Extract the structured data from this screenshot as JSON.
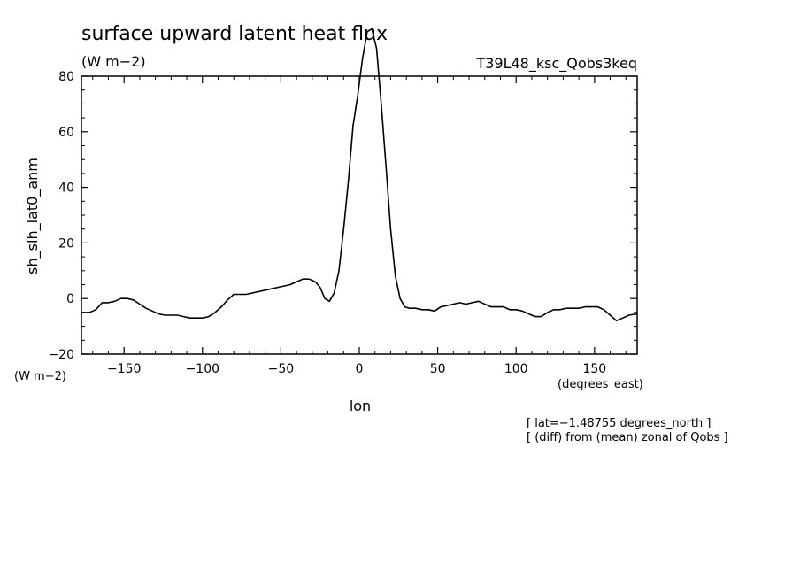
{
  "chart_data": {
    "type": "line",
    "title": "surface upward latent heat flux",
    "title_units": "(W m−2)",
    "run_label": "T39L48_ksc_Qobs3keq",
    "ylabel": "sh_slh_lat0_anm",
    "yunits": "(W m−2)",
    "xlabel": "lon",
    "xunits": "(degrees_east)",
    "notes": [
      "[ lat=−1.48755 degrees_north ]",
      "[ (diff) from (mean) zonal of Qobs ]"
    ],
    "xlim": [
      -177.19,
      177.19
    ],
    "ylim": [
      -20,
      80
    ],
    "xticks": [
      -150,
      -100,
      -50,
      0,
      50,
      100,
      150
    ],
    "xtick_labels": [
      "−150",
      "−100",
      "−50",
      "0",
      "50",
      "100",
      "150"
    ],
    "yticks": [
      -20,
      0,
      20,
      40,
      60,
      80
    ],
    "ytick_labels": [
      "−20",
      "0",
      "20",
      "40",
      "60",
      "80"
    ],
    "grid": false,
    "series": [
      {
        "x": [
          -177.19,
          -172,
          -168,
          -164,
          -160,
          -156,
          -152,
          -148,
          -144,
          -140,
          -136,
          -132,
          -128,
          -124,
          -120,
          -116,
          -112,
          -108,
          -104,
          -100,
          -96,
          -92,
          -88,
          -84,
          -80,
          -76,
          -72,
          -68,
          -64,
          -60,
          -56,
          -52,
          -48,
          -44,
          -40,
          -36,
          -32,
          -28,
          -25,
          -22,
          -19,
          -16,
          -13,
          -10,
          -7,
          -4,
          -1,
          2,
          5,
          8,
          11,
          14,
          17,
          20,
          23,
          26,
          29,
          32,
          36,
          40,
          44,
          48,
          52,
          56,
          60,
          64,
          68,
          72,
          76,
          80,
          84,
          88,
          92,
          96,
          100,
          104,
          108,
          112,
          116,
          120,
          124,
          128,
          132,
          136,
          140,
          144,
          148,
          152,
          156,
          160,
          164,
          168,
          172,
          177.19
        ],
        "y": [
          -5,
          -5,
          -4,
          -1.5,
          -1.5,
          -1,
          0,
          0,
          -0.5,
          -2,
          -3.5,
          -4.5,
          -5.5,
          -6,
          -6,
          -6,
          -6.5,
          -7,
          -7,
          -7,
          -6.5,
          -5,
          -3,
          -0.5,
          1.5,
          1.5,
          1.5,
          2,
          2.5,
          3,
          3.5,
          4,
          4.5,
          5,
          6,
          7,
          7,
          6,
          4,
          0,
          -1,
          2,
          10,
          25,
          42,
          62,
          73,
          86,
          96,
          97,
          90,
          70,
          48,
          25,
          8,
          0,
          -3,
          -3.5,
          -3.5,
          -4,
          -4,
          -4.5,
          -3,
          -2.5,
          -2,
          -1.5,
          -2,
          -1.5,
          -1,
          -2,
          -3,
          -3,
          -3,
          -4,
          -4,
          -4.5,
          -5.5,
          -6.5,
          -6.5,
          -5,
          -4,
          -4,
          -3.5,
          -3.5,
          -3.5,
          -3,
          -3,
          -3,
          -4,
          -6,
          -8,
          -7,
          -6,
          -5.5
        ]
      }
    ]
  }
}
